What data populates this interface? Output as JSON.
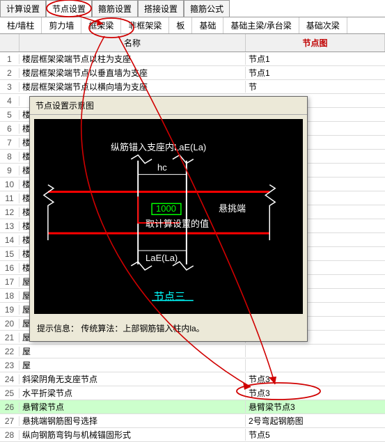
{
  "main_tabs": [
    "计算设置",
    "节点设置",
    "箍筋设置",
    "搭接设置",
    "箍筋公式"
  ],
  "main_active": 1,
  "sub_tabs": [
    "柱/墙柱",
    "剪力墙",
    "框架梁",
    "非框架梁",
    "板",
    "基础",
    "基础主梁/承台梁",
    "基础次梁"
  ],
  "sub_active": 2,
  "columns": {
    "name": "名称",
    "node": "节点图"
  },
  "rows": [
    {
      "n": 1,
      "name": "楼层框架梁端节点以柱为支座",
      "node": "节点1"
    },
    {
      "n": 2,
      "name": "楼层框架梁端节点以垂直墙为支座",
      "node": "节点1"
    },
    {
      "n": 3,
      "name": "楼层框架梁端节点以横向墙为支座",
      "node": "节"
    },
    {
      "n": 4,
      "name": "",
      "node": ""
    },
    {
      "n": 5,
      "name": "楼",
      "node": ""
    },
    {
      "n": 6,
      "name": "楼",
      "node": ""
    },
    {
      "n": 7,
      "name": "楼",
      "node": ""
    },
    {
      "n": 8,
      "name": "楼",
      "node": ""
    },
    {
      "n": 9,
      "name": "楼",
      "node": ""
    },
    {
      "n": 10,
      "name": "楼",
      "node": ""
    },
    {
      "n": 11,
      "name": "楼",
      "node": ""
    },
    {
      "n": 12,
      "name": "楼",
      "node": ""
    },
    {
      "n": 13,
      "name": "楼",
      "node": ""
    },
    {
      "n": 14,
      "name": "楼",
      "node": ""
    },
    {
      "n": 15,
      "name": "楼",
      "node": ""
    },
    {
      "n": 16,
      "name": "楼",
      "node": ""
    },
    {
      "n": 17,
      "name": "屋",
      "node": ""
    },
    {
      "n": 18,
      "name": "屋",
      "node": ""
    },
    {
      "n": 19,
      "name": "屋",
      "node": ""
    },
    {
      "n": 20,
      "name": "屋",
      "node": ""
    },
    {
      "n": 21,
      "name": "屋",
      "node": ""
    },
    {
      "n": 22,
      "name": "屋",
      "node": ""
    },
    {
      "n": 23,
      "name": "屋",
      "node": ""
    },
    {
      "n": 24,
      "name": "斜梁阴角无支座节点",
      "node": "节点3"
    },
    {
      "n": 25,
      "name": "水平折梁节点",
      "node": "节点3"
    },
    {
      "n": 26,
      "name": "悬臂梁节点",
      "node": "悬臂梁节点3",
      "hl": true
    },
    {
      "n": 27,
      "name": "悬挑端钢筋图号选择",
      "node": "2号弯起钢筋图"
    },
    {
      "n": 28,
      "name": "纵向钢筋弯钩与机械锚固形式",
      "node": "节点5"
    }
  ],
  "popup": {
    "title": "节点设置示意图",
    "top_label": "纵筋锚入支座内LaE(La)",
    "hc": "hc",
    "value": "1000",
    "right_label": "悬挑端",
    "calc_label": "取计算设置的值",
    "lae": "LaE(La)",
    "node_name": "节点三",
    "hint": "提示信息：  传统算法：上部钢筋锚入柱内la。"
  },
  "colors": {
    "red": "#ff0000",
    "green": "#00ff00",
    "cyan": "#00ffff",
    "annot": "#d00000",
    "hl_row": "#ccffcc"
  }
}
